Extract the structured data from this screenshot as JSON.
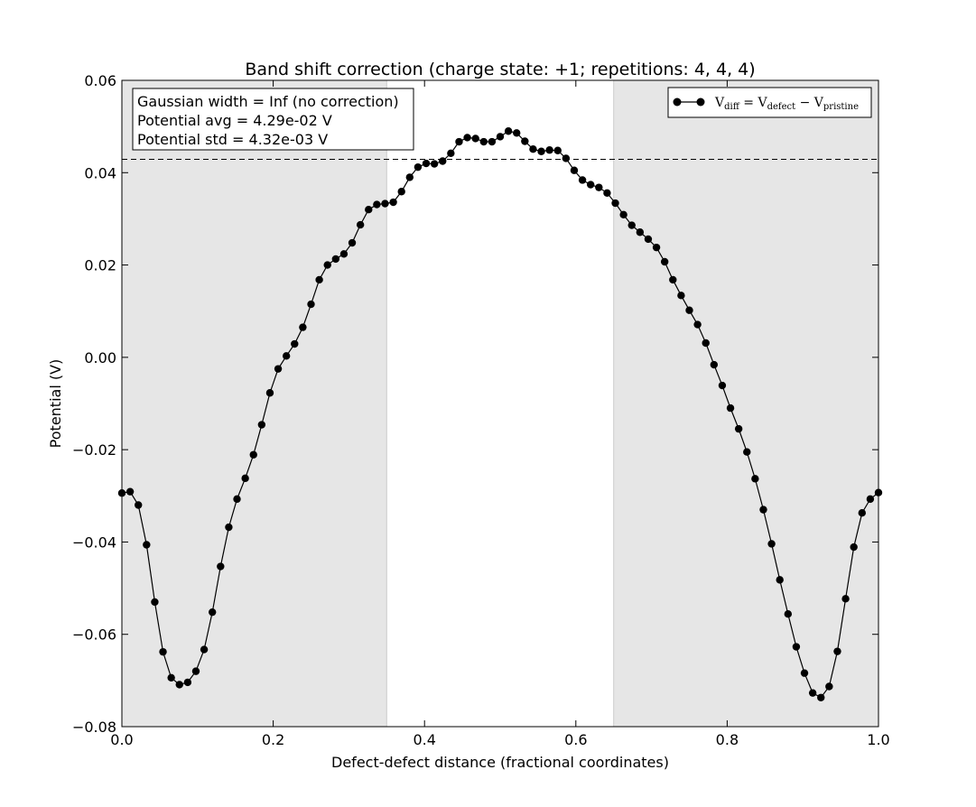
{
  "chart_data": {
    "type": "line",
    "title": "Band shift correction (charge state: +1; repetitions: 4, 4, 4)",
    "xlabel": "Defect-defect distance (fractional coordinates)",
    "ylabel": "Potential (V)",
    "xlim": [
      0.0,
      1.0
    ],
    "ylim": [
      -0.08,
      0.06
    ],
    "x_ticks": [
      "0.0",
      "0.2",
      "0.4",
      "0.6",
      "0.8",
      "1.0"
    ],
    "x_tick_values": [
      0.0,
      0.2,
      0.4,
      0.6,
      0.8,
      1.0
    ],
    "y_ticks": [
      "0.06",
      "0.04",
      "0.02",
      "0.00",
      "−0.02",
      "−0.04",
      "−0.06",
      "−0.08"
    ],
    "y_tick_values": [
      0.06,
      0.04,
      0.02,
      0.0,
      -0.02,
      -0.04,
      -0.06,
      -0.08
    ],
    "grid": false,
    "legend_position": "top-right",
    "series": [
      {
        "name": "V_diff = V_defect − V_pristine",
        "x_start": 0.0,
        "x_step": 0.0108696,
        "values": [
          -0.0294,
          -0.0291,
          -0.032,
          -0.0406,
          -0.053,
          -0.0638,
          -0.0694,
          -0.0709,
          -0.0704,
          -0.068,
          -0.0633,
          -0.0552,
          -0.0453,
          -0.0368,
          -0.0307,
          -0.0262,
          -0.0211,
          -0.0146,
          -0.0077,
          -0.0025,
          0.0003,
          0.0029,
          0.0065,
          0.0115,
          0.0168,
          0.02,
          0.0213,
          0.0224,
          0.0248,
          0.0287,
          0.032,
          0.0331,
          0.0333,
          0.0336,
          0.0359,
          0.039,
          0.0412,
          0.042,
          0.0419,
          0.0425,
          0.0442,
          0.0467,
          0.0476,
          0.0474,
          0.0467,
          0.0467,
          0.0478,
          0.049,
          0.0486,
          0.0468,
          0.0451,
          0.0446,
          0.0449,
          0.0448,
          0.0431,
          0.0405,
          0.0384,
          0.0374,
          0.0368,
          0.0356,
          0.0334,
          0.0309,
          0.0286,
          0.0271,
          0.0256,
          0.0238,
          0.0207,
          0.0168,
          0.0134,
          0.0102,
          0.0071,
          0.0031,
          -0.0016,
          -0.0061,
          -0.011,
          -0.0155,
          -0.0205,
          -0.0263,
          -0.033,
          -0.0404,
          -0.0482,
          -0.0556,
          -0.0627,
          -0.0684,
          -0.0727,
          -0.0737,
          -0.0713,
          -0.0637,
          -0.0523,
          -0.0411,
          -0.0337,
          -0.0307,
          -0.0293
        ]
      }
    ],
    "reference_line": {
      "y": 0.0429,
      "style": "dashed"
    },
    "shaded_regions": [
      {
        "x_from": 0.0,
        "x_to": 0.35,
        "color": "#e6e6e6"
      },
      {
        "x_from": 0.65,
        "x_to": 1.0,
        "color": "#e6e6e6"
      }
    ],
    "info_box": {
      "lines": [
        "Gaussian width = Inf (no correction)",
        "Potential avg = 4.29e-02 V",
        "Potential std = 4.32e-03 V"
      ]
    },
    "legend": {
      "main": "V",
      "main_sub": "diff",
      "eq": " = V",
      "defect_sub": "defect",
      "minus": " − V",
      "pristine_sub": "pristine"
    },
    "colors": {
      "line": "#000000",
      "marker": "#000000",
      "shade": "#e6e6e6",
      "shade_edge": "#cccccc"
    }
  }
}
